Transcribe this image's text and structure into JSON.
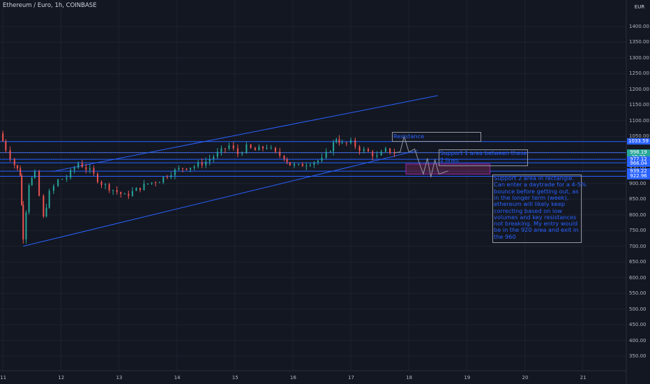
{
  "header": {
    "title": "Ethereum / Euro, 1h, COINBASE",
    "currency_button": "EUR"
  },
  "colors": {
    "background": "#131722",
    "grid": "#1e222d",
    "up": "#26a69a",
    "down": "#ef5350",
    "line": "#2962ff",
    "note_text": "#2962ff",
    "box_border": "#9598a1",
    "rect_fill": "#4a2040",
    "rect_border": "#9c27b0",
    "projection": "#9598a1"
  },
  "chart_data": {
    "type": "candlestick",
    "title": "Ethereum / Euro, 1h, COINBASE",
    "ylim": [
      320,
      1460
    ],
    "xlim": [
      10.95,
      21.75
    ],
    "grid": true,
    "y_ticks": [
      1400,
      1350,
      1300,
      1250,
      1200,
      1150,
      1100,
      1050,
      950,
      900,
      850,
      800,
      750,
      700,
      650,
      600,
      550,
      500,
      450,
      400,
      350
    ],
    "x_ticks": [
      {
        "x": 11,
        "label": "11"
      },
      {
        "x": 12,
        "label": "12"
      },
      {
        "x": 13,
        "label": "13"
      },
      {
        "x": 14,
        "label": "14"
      },
      {
        "x": 15,
        "label": "15"
      },
      {
        "x": 16,
        "label": "16"
      },
      {
        "x": 17,
        "label": "17"
      },
      {
        "x": 18,
        "label": "18"
      },
      {
        "x": 19,
        "label": "19"
      },
      {
        "x": 20,
        "label": "20"
      },
      {
        "x": 21,
        "label": "21"
      }
    ],
    "price_tags": [
      {
        "label": "1033.59",
        "price": 1033.59,
        "color": "#2962ff"
      },
      {
        "label": "998.19",
        "price": 998.19,
        "color": "#26a69a"
      },
      {
        "label": "39:30",
        "price": 983.5,
        "color": "#26a69a"
      },
      {
        "label": "977.12",
        "price": 977.12,
        "color": "#2962ff"
      },
      {
        "label": "966.04",
        "price": 962.5,
        "color": "#2962ff"
      },
      {
        "label": "939.22",
        "price": 939.22,
        "color": "#2962ff"
      },
      {
        "label": "922.96",
        "price": 922.96,
        "color": "#2962ff"
      }
    ],
    "path_points": [
      [
        10.95,
        1060
      ],
      [
        11.05,
        1010
      ],
      [
        11.2,
        960
      ],
      [
        11.3,
        930
      ],
      [
        11.35,
        730
      ],
      [
        11.45,
        900
      ],
      [
        11.55,
        930
      ],
      [
        11.7,
        790
      ],
      [
        11.8,
        870
      ],
      [
        11.95,
        910
      ],
      [
        12.1,
        920
      ],
      [
        12.3,
        965
      ],
      [
        12.5,
        940
      ],
      [
        12.7,
        900
      ],
      [
        12.9,
        880
      ],
      [
        13.1,
        860
      ],
      [
        13.3,
        880
      ],
      [
        13.5,
        900
      ],
      [
        13.7,
        910
      ],
      [
        13.9,
        935
      ],
      [
        14.1,
        950
      ],
      [
        14.3,
        955
      ],
      [
        14.5,
        970
      ],
      [
        14.7,
        995
      ],
      [
        14.9,
        1020
      ],
      [
        15.05,
        995
      ],
      [
        15.2,
        1015
      ],
      [
        15.35,
        1005
      ],
      [
        15.55,
        1018
      ],
      [
        15.7,
        995
      ],
      [
        15.85,
        985
      ],
      [
        15.95,
        960
      ],
      [
        16.1,
        955
      ],
      [
        16.3,
        968
      ],
      [
        16.5,
        975
      ],
      [
        16.65,
        1010
      ],
      [
        16.75,
        1045
      ],
      [
        16.85,
        1025
      ],
      [
        17.0,
        1030
      ],
      [
        17.15,
        1010
      ],
      [
        17.3,
        1000
      ],
      [
        17.45,
        985
      ],
      [
        17.6,
        1005
      ],
      [
        17.75,
        998
      ]
    ],
    "projection": [
      [
        17.75,
        998
      ],
      [
        17.85,
        1000
      ],
      [
        17.92,
        1050
      ],
      [
        18.0,
        1000
      ],
      [
        18.1,
        1010
      ],
      [
        18.18,
        965
      ],
      [
        18.25,
        930
      ],
      [
        18.32,
        980
      ],
      [
        18.38,
        920
      ],
      [
        18.45,
        975
      ],
      [
        18.52,
        930
      ],
      [
        18.6,
        935
      ],
      [
        18.68,
        940
      ]
    ],
    "trend_lines": [
      {
        "from": [
          11.35,
          700
        ],
        "to": [
          18.15,
          1005
        ]
      },
      {
        "from": [
          11.85,
          938
        ],
        "to": [
          18.5,
          1180
        ]
      }
    ],
    "horizontal_lines": [
      1033.59,
      998.19,
      977.12,
      966.04,
      939.22,
      922.96
    ],
    "rectangle": {
      "x0": 17.95,
      "x1": 19.4,
      "y_top": 962,
      "y_bottom": 930
    },
    "annotations": {
      "resistance": "Resistance",
      "support1": [
        "Support 1 area between these",
        "2 lines"
      ],
      "support2": [
        "Support 2 area in rectangle.",
        "Can enter a daytrade for a 4-5%",
        "bounce before getting out, as",
        "in the longer term (week),",
        "ethereum will likely keep",
        "correcting based on low",
        "volumes and key resistances",
        "not breaking. My entry would",
        "be in the 920 area and exit in",
        "the 960"
      ]
    }
  }
}
